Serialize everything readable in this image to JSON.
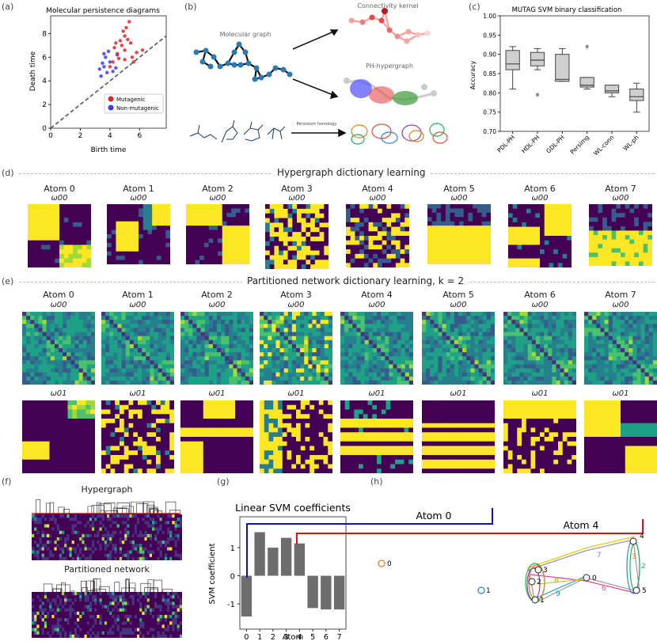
{
  "panels": {
    "a": {
      "label": "(a)",
      "title": "Molecular persistence diagrams",
      "xlabel": "Birth time",
      "ylabel": "Death time",
      "xticks": [
        "0",
        "2",
        "4",
        "6"
      ],
      "yticks": [
        "0",
        "2",
        "4",
        "6",
        "8"
      ],
      "legend": [
        "Mutagenic",
        "Non-mutagenic"
      ],
      "colors": {
        "mutagenic": "#e3242b",
        "non_mutagenic": "#3a3aff"
      }
    },
    "b": {
      "label": "(b)",
      "molecular_graph": "Molecular graph",
      "connectivity_kernel": "Connectivity kernel",
      "ph_hypergraph": "PH-hypergraph",
      "persistent_homology": "Persistent homology"
    },
    "c": {
      "label": "(c)",
      "title": "MUTAG SVM binary classification",
      "ylabel": "Accuracy",
      "categories": [
        "PDL-PH",
        "HDL-PH",
        "GDL-PH",
        "Persimg",
        "WL-conn",
        "WL-ph"
      ],
      "yticks": [
        "0.70",
        "0.75",
        "0.80",
        "0.85",
        "0.90",
        "0.95",
        "1.00"
      ]
    },
    "d": {
      "label": "(d)",
      "section_title": "Hypergraph dictionary learning",
      "atoms": [
        "Atom 0",
        "Atom 1",
        "Atom 2",
        "Atom 3",
        "Atom 4",
        "Atom 5",
        "Atom 6",
        "Atom 7"
      ],
      "omega": "ω00"
    },
    "e": {
      "label": "(e)",
      "section_title": "Partitioned network dictionary learning, k = 2",
      "atoms": [
        "Atom 0",
        "Atom 1",
        "Atom 2",
        "Atom 3",
        "Atom 4",
        "Atom 5",
        "Atom 6",
        "Atom 7"
      ],
      "omega0": "ω00",
      "omega1": "ω01"
    },
    "f": {
      "label": "(f)",
      "hypergraph": "Hypergraph",
      "partitioned": "Partitioned network"
    },
    "g": {
      "label": "(g)",
      "title": "Linear SVM coefficients",
      "ylabel": "SVM coefficient",
      "xlabel": "Atom"
    },
    "h": {
      "label": "(h)",
      "atom0": "Atom 0",
      "atom4": "Atom 4",
      "nodes": [
        "0",
        "1",
        "0",
        "1",
        "2",
        "3",
        "4",
        "5"
      ],
      "edge_labels": [
        "7",
        "8",
        "9",
        "6",
        "2",
        "3"
      ]
    }
  },
  "chart_data": [
    {
      "type": "scatter",
      "title": "Molecular persistence diagrams",
      "xlabel": "Birth time",
      "ylabel": "Death time",
      "xlim": [
        0,
        7.8
      ],
      "ylim": [
        0,
        9.5
      ],
      "series": [
        {
          "name": "Mutagenic",
          "points": [
            [
              4.2,
              5.6
            ],
            [
              4.5,
              6.3
            ],
            [
              4.8,
              7.0
            ],
            [
              5.0,
              7.8
            ],
            [
              5.1,
              8.5
            ],
            [
              5.3,
              9.0
            ],
            [
              4.6,
              5.9
            ],
            [
              5.0,
              6.6
            ],
            [
              5.4,
              7.2
            ],
            [
              5.5,
              6.0
            ],
            [
              4.9,
              8.2
            ],
            [
              5.2,
              7.5
            ],
            [
              4.3,
              6.8
            ],
            [
              4.7,
              7.4
            ],
            [
              5.8,
              6.4
            ],
            [
              6.2,
              6.6
            ],
            [
              4.0,
              5.2
            ],
            [
              4.4,
              7.2
            ],
            [
              5.0,
              5.8
            ],
            [
              5.6,
              5.6
            ]
          ]
        },
        {
          "name": "Non-mutagenic",
          "points": [
            [
              3.3,
              5.0
            ],
            [
              3.5,
              5.5
            ],
            [
              3.7,
              6.0
            ],
            [
              3.9,
              6.5
            ],
            [
              3.6,
              5.2
            ],
            [
              4.0,
              5.6
            ],
            [
              3.4,
              4.4
            ],
            [
              3.8,
              4.7
            ],
            [
              4.2,
              4.8
            ],
            [
              4.4,
              5.1
            ],
            [
              3.6,
              6.3
            ],
            [
              4.5,
              6.2
            ]
          ]
        }
      ]
    },
    {
      "type": "box",
      "title": "MUTAG SVM binary classification",
      "ylabel": "Accuracy",
      "ylim": [
        0.7,
        1.0
      ],
      "categories": [
        "PDL-PH",
        "HDL-PH",
        "GDL-PH",
        "Persimg",
        "WL-conn",
        "WL-ph"
      ],
      "boxes": [
        {
          "whislo": 0.81,
          "q1": 0.86,
          "med": 0.875,
          "q3": 0.91,
          "whishi": 0.92,
          "fliers": []
        },
        {
          "whislo": 0.86,
          "q1": 0.87,
          "med": 0.885,
          "q3": 0.905,
          "whishi": 0.915,
          "fliers": [
            0.795
          ]
        },
        {
          "whislo": 0.83,
          "q1": 0.83,
          "med": 0.835,
          "q3": 0.9,
          "whishi": 0.915,
          "fliers": []
        },
        {
          "whislo": 0.81,
          "q1": 0.815,
          "med": 0.82,
          "q3": 0.84,
          "whishi": 0.84,
          "fliers": [
            0.92
          ]
        },
        {
          "whislo": 0.79,
          "q1": 0.8,
          "med": 0.805,
          "q3": 0.82,
          "whishi": 0.82,
          "fliers": []
        },
        {
          "whislo": 0.75,
          "q1": 0.78,
          "med": 0.79,
          "q3": 0.81,
          "whishi": 0.825,
          "fliers": []
        }
      ]
    },
    {
      "type": "bar",
      "title": "Linear SVM coefficients",
      "xlabel": "Atom",
      "ylabel": "SVM coefficient",
      "categories": [
        "0",
        "1",
        "2",
        "3",
        "4",
        "5",
        "6",
        "7"
      ],
      "values": [
        -1.45,
        1.55,
        1.0,
        1.35,
        1.15,
        -1.15,
        -1.2,
        -1.2
      ],
      "ylim": [
        -1.9,
        2.1
      ],
      "yticks": [
        "-1",
        "0",
        "1"
      ]
    }
  ]
}
